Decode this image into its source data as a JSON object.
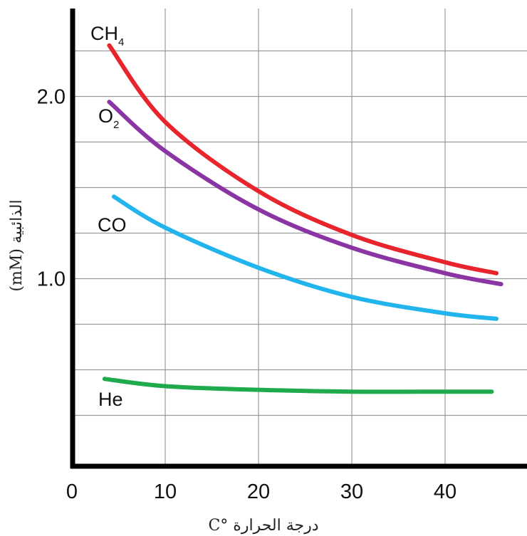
{
  "chart_data": {
    "type": "line",
    "xlabel": "درجة الحرارة °C",
    "ylabel": "الذائبية (mM)",
    "xlim": [
      0,
      48
    ],
    "ylim": [
      0.0,
      2.45
    ],
    "x_ticks": [
      0,
      10,
      20,
      30,
      40
    ],
    "x_tick_labels": [
      "0",
      "10",
      "20",
      "30",
      "40"
    ],
    "y_ticks": [
      1.0,
      2.0
    ],
    "y_tick_labels": [
      "1.0",
      "2.0"
    ],
    "grid": true,
    "series": [
      {
        "name": "CH4",
        "label_main": "CH",
        "label_sub": "4",
        "color": "#e8242c",
        "x": [
          4,
          10,
          20,
          30,
          40,
          45.5
        ],
        "y": [
          2.28,
          1.86,
          1.48,
          1.24,
          1.09,
          1.03
        ]
      },
      {
        "name": "O2",
        "label_main": "O",
        "label_sub": "2",
        "color": "#8b34a4",
        "x": [
          4,
          10,
          20,
          30,
          40,
          46
        ],
        "y": [
          1.97,
          1.7,
          1.38,
          1.17,
          1.03,
          0.97
        ]
      },
      {
        "name": "CO",
        "label_main": "CO",
        "label_sub": "",
        "color": "#22b4ec",
        "x": [
          4.5,
          10,
          20,
          30,
          40,
          45.5
        ],
        "y": [
          1.45,
          1.28,
          1.06,
          0.9,
          0.81,
          0.78
        ]
      },
      {
        "name": "He",
        "label_main": "He",
        "label_sub": "",
        "color": "#1faa4c",
        "x": [
          3.5,
          10,
          20,
          30,
          40,
          45
        ],
        "y": [
          0.45,
          0.41,
          0.39,
          0.38,
          0.38,
          0.38
        ]
      }
    ]
  }
}
